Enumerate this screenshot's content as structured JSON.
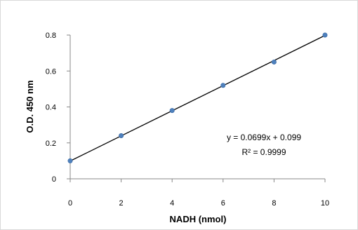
{
  "chart_data": {
    "type": "scatter",
    "title": "",
    "xlabel": "NADH (nmol)",
    "ylabel": "O.D. 450 nm",
    "xlim": [
      0,
      10
    ],
    "ylim": [
      0,
      0.8
    ],
    "x_ticks": [
      "0",
      "2",
      "4",
      "6",
      "8",
      "10"
    ],
    "y_ticks": [
      "0",
      "0.2",
      "0.4",
      "0.6",
      "0.8"
    ],
    "grid": false,
    "legend": "none",
    "series": [
      {
        "x": [
          0,
          2,
          4,
          6,
          8,
          10
        ],
        "y": [
          0.1,
          0.24,
          0.38,
          0.52,
          0.65,
          0.8
        ],
        "color": "#4f81bd"
      }
    ],
    "trendline": {
      "slope": 0.0699,
      "intercept": 0.099,
      "equation": "y = 0.0699x + 0.099",
      "r_squared": "R² = 0.9999",
      "color": "#000000"
    }
  }
}
